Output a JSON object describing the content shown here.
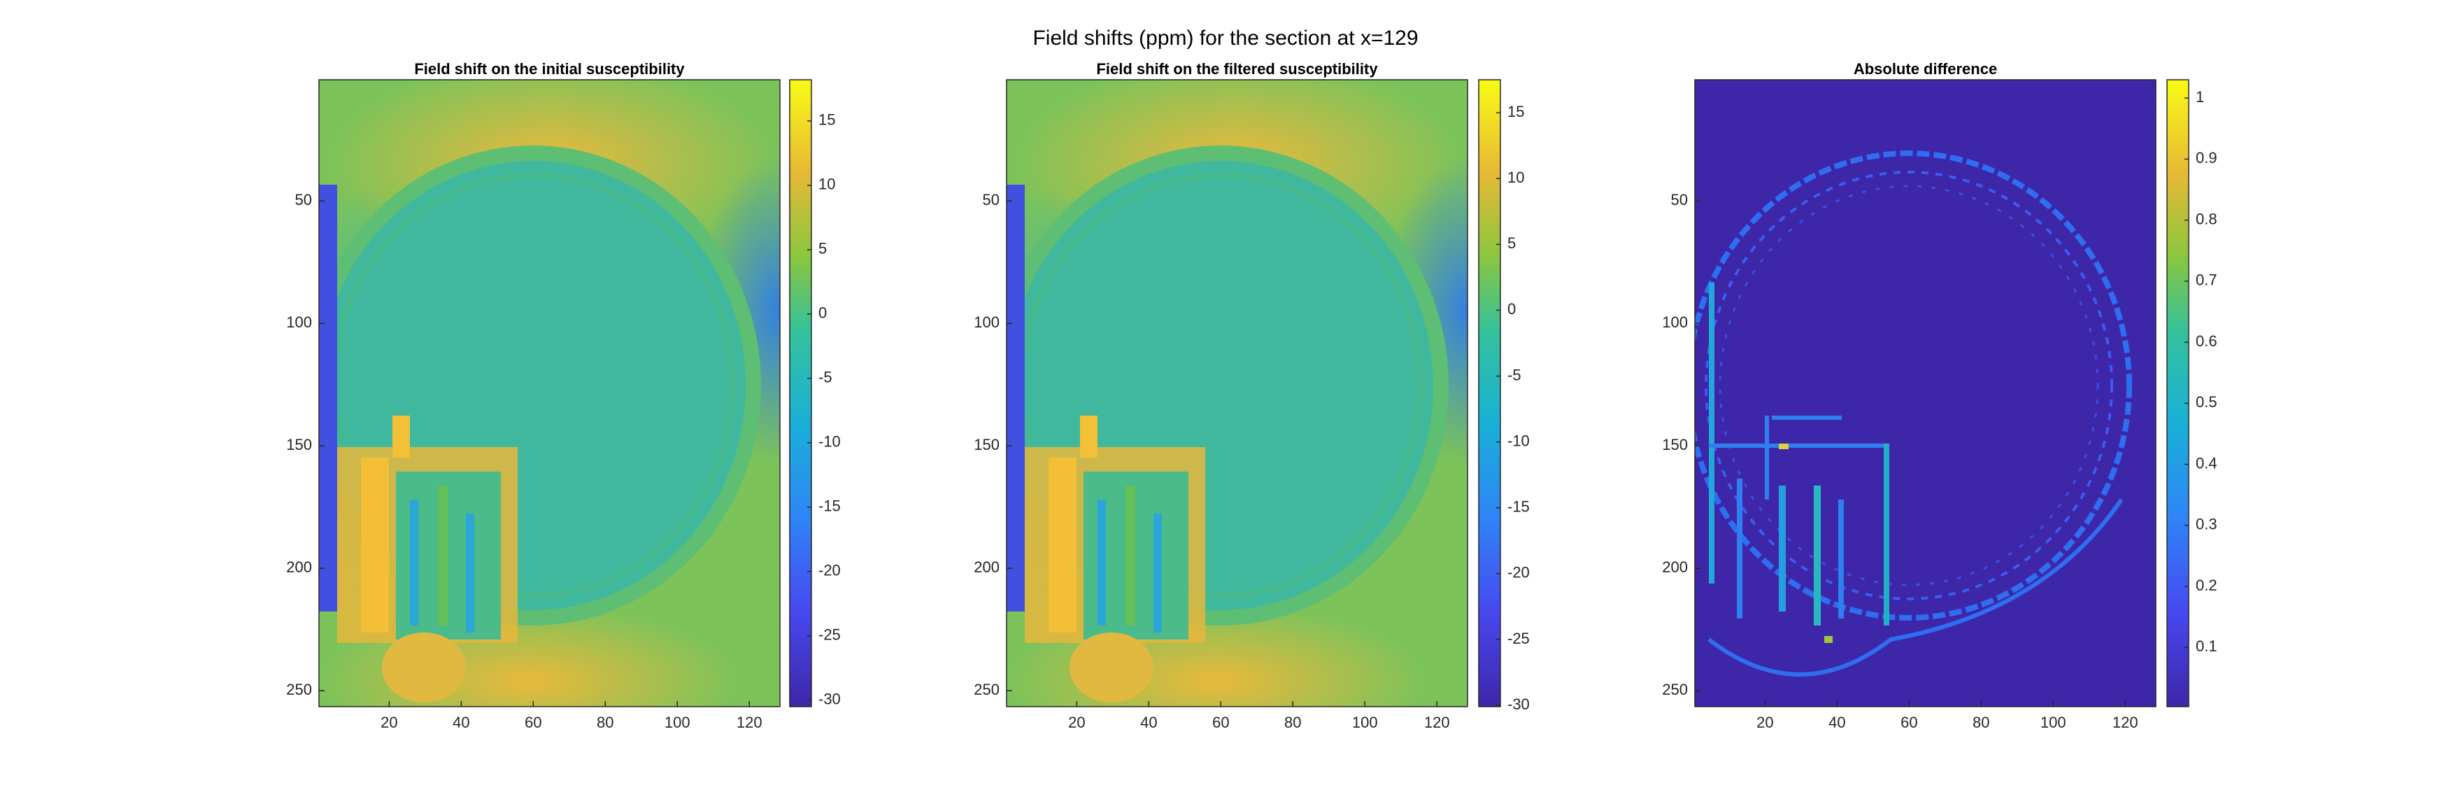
{
  "title": "Field shifts (ppm) for the section at x=129",
  "chart_data": [
    {
      "type": "heatmap",
      "title": "Field shift on the initial susceptibility",
      "xlim": [
        0.5,
        128.5
      ],
      "xticks": [
        20,
        40,
        60,
        80,
        100,
        120
      ],
      "ylim": [
        0.5,
        256.5
      ],
      "yticks": [
        50,
        100,
        150,
        200,
        250
      ],
      "y_direction": "reverse",
      "colormap": "parula",
      "clim": [
        -30.5,
        18.2
      ],
      "cticks": [
        -30,
        -25,
        -20,
        -15,
        -10,
        -5,
        0,
        5,
        10,
        15
      ]
    },
    {
      "type": "heatmap",
      "title": "Field shift on the filtered susceptibility",
      "xlim": [
        0.5,
        128.5
      ],
      "xticks": [
        20,
        40,
        60,
        80,
        100,
        120
      ],
      "ylim": [
        0.5,
        256.5
      ],
      "yticks": [
        50,
        100,
        150,
        200,
        250
      ],
      "y_direction": "reverse",
      "colormap": "parula",
      "clim": [
        -30.1,
        17.5
      ],
      "cticks": [
        -30,
        -25,
        -20,
        -15,
        -10,
        -5,
        0,
        5,
        10,
        15
      ]
    },
    {
      "type": "heatmap",
      "title": "Absolute difference",
      "xlim": [
        0.5,
        128.5
      ],
      "xticks": [
        20,
        40,
        60,
        80,
        100,
        120
      ],
      "ylim": [
        0.5,
        256.5
      ],
      "yticks": [
        50,
        100,
        150,
        200,
        250
      ],
      "y_direction": "reverse",
      "colormap": "parula",
      "clim": [
        0.003,
        1.03
      ],
      "cticks": [
        0.1,
        0.2,
        0.3,
        0.4,
        0.5,
        0.6,
        0.7,
        0.8,
        0.9,
        1
      ]
    }
  ]
}
